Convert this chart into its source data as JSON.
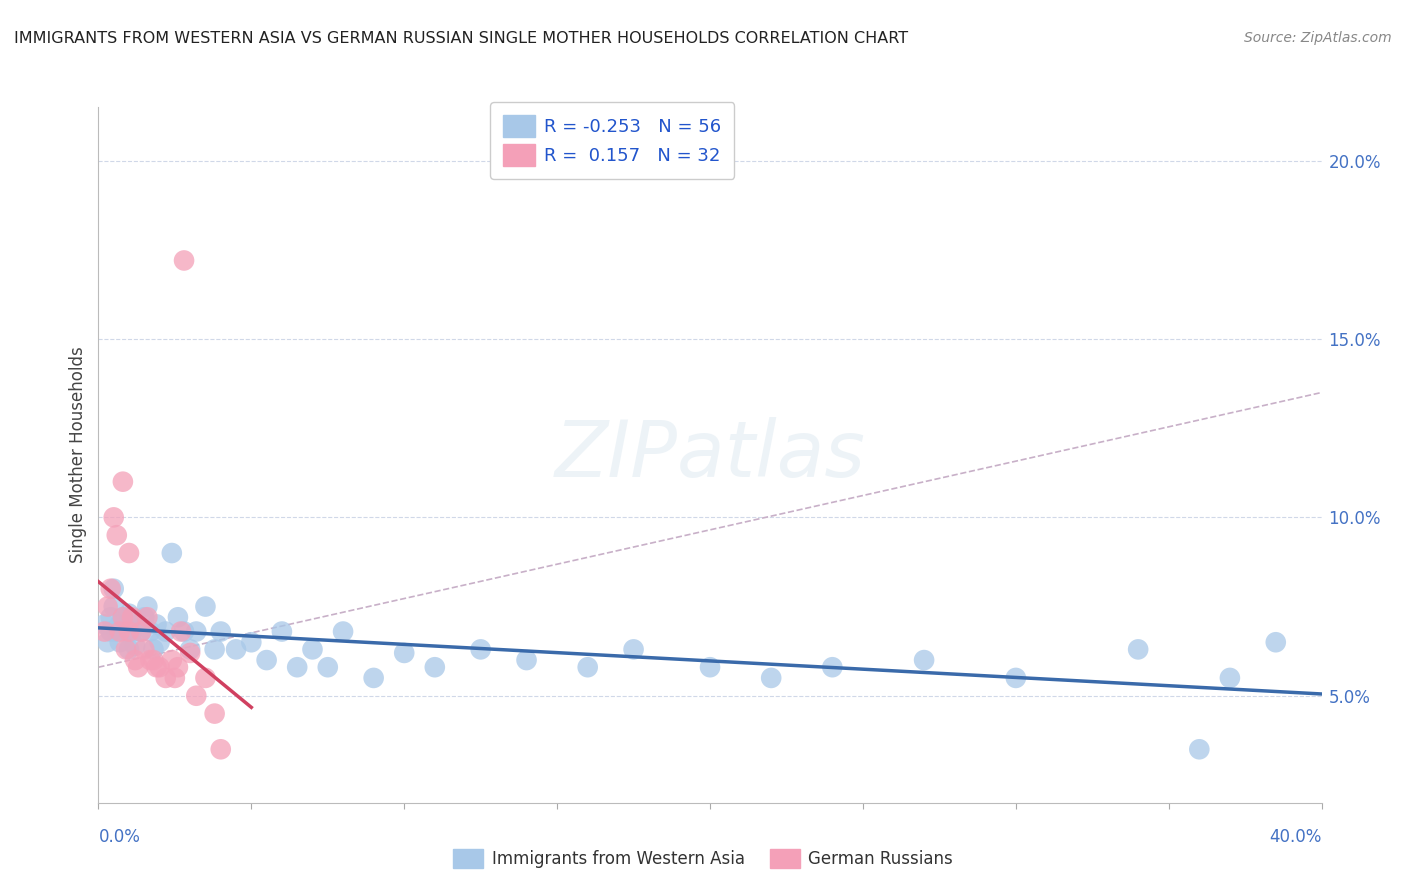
{
  "title": "IMMIGRANTS FROM WESTERN ASIA VS GERMAN RUSSIAN SINGLE MOTHER HOUSEHOLDS CORRELATION CHART",
  "source": "Source: ZipAtlas.com",
  "ylabel": "Single Mother Households",
  "legend_blue_r": "-0.253",
  "legend_blue_n": "56",
  "legend_pink_r": "0.157",
  "legend_pink_n": "32",
  "legend_blue_label": "Immigrants from Western Asia",
  "legend_pink_label": "German Russians",
  "watermark": "ZIPatlas",
  "blue_color": "#a8c8e8",
  "pink_color": "#f4a0b8",
  "blue_line_color": "#3a6aaa",
  "pink_line_color": "#d04060",
  "dashed_line_color": "#c8b0c8",
  "x_min": 0.0,
  "x_max": 0.4,
  "y_min": 0.02,
  "y_max": 0.215,
  "blue_x": [
    0.002,
    0.003,
    0.004,
    0.004,
    0.005,
    0.005,
    0.006,
    0.007,
    0.007,
    0.008,
    0.009,
    0.01,
    0.01,
    0.011,
    0.012,
    0.013,
    0.014,
    0.015,
    0.016,
    0.017,
    0.018,
    0.019,
    0.02,
    0.022,
    0.024,
    0.026,
    0.028,
    0.03,
    0.032,
    0.035,
    0.038,
    0.04,
    0.045,
    0.05,
    0.055,
    0.06,
    0.065,
    0.07,
    0.075,
    0.08,
    0.09,
    0.1,
    0.11,
    0.125,
    0.14,
    0.16,
    0.175,
    0.2,
    0.22,
    0.24,
    0.27,
    0.3,
    0.34,
    0.36,
    0.37,
    0.385
  ],
  "blue_y": [
    0.07,
    0.065,
    0.072,
    0.068,
    0.075,
    0.08,
    0.068,
    0.07,
    0.065,
    0.072,
    0.068,
    0.073,
    0.063,
    0.068,
    0.064,
    0.07,
    0.068,
    0.072,
    0.075,
    0.068,
    0.063,
    0.07,
    0.065,
    0.068,
    0.09,
    0.072,
    0.068,
    0.063,
    0.068,
    0.075,
    0.063,
    0.068,
    0.063,
    0.065,
    0.06,
    0.068,
    0.058,
    0.063,
    0.058,
    0.068,
    0.055,
    0.062,
    0.058,
    0.063,
    0.06,
    0.058,
    0.063,
    0.058,
    0.055,
    0.058,
    0.06,
    0.055,
    0.063,
    0.035,
    0.055,
    0.065
  ],
  "pink_x": [
    0.002,
    0.003,
    0.004,
    0.005,
    0.006,
    0.007,
    0.008,
    0.008,
    0.009,
    0.01,
    0.01,
    0.011,
    0.012,
    0.013,
    0.014,
    0.015,
    0.016,
    0.017,
    0.018,
    0.019,
    0.02,
    0.022,
    0.024,
    0.025,
    0.026,
    0.027,
    0.028,
    0.03,
    0.032,
    0.035,
    0.038,
    0.04
  ],
  "pink_y": [
    0.068,
    0.075,
    0.08,
    0.1,
    0.095,
    0.068,
    0.072,
    0.11,
    0.063,
    0.068,
    0.09,
    0.072,
    0.06,
    0.058,
    0.068,
    0.063,
    0.072,
    0.06,
    0.06,
    0.058,
    0.058,
    0.055,
    0.06,
    0.055,
    0.058,
    0.068,
    0.172,
    0.062,
    0.05,
    0.055,
    0.045,
    0.035
  ]
}
